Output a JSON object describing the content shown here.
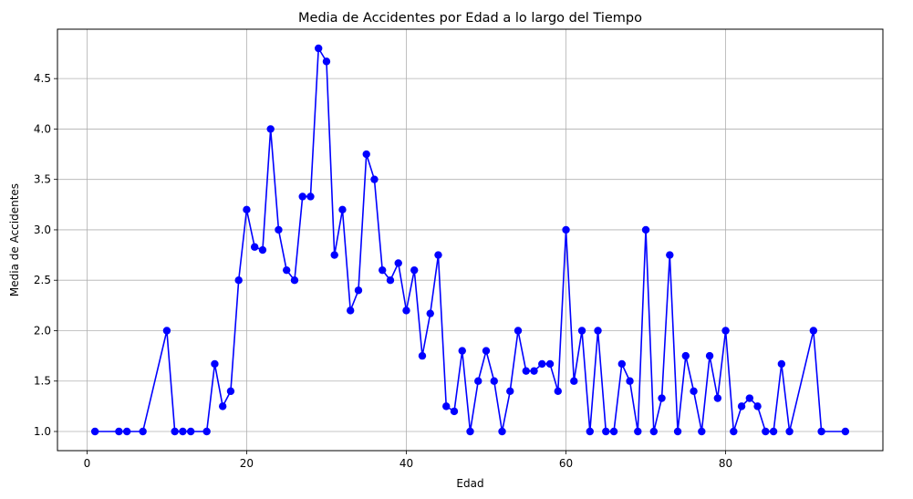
{
  "chart_data": {
    "type": "line",
    "title": "Media de Accidentes por Edad a lo largo del Tiempo",
    "xlabel": "Edad",
    "ylabel": "Media de Accidentes",
    "xlim": [
      -3.7,
      99.7
    ],
    "ylim": [
      0.81,
      4.99
    ],
    "xticks": [
      0,
      20,
      40,
      60,
      80
    ],
    "yticks": [
      1.0,
      1.5,
      2.0,
      2.5,
      3.0,
      3.5,
      4.0,
      4.5
    ],
    "ytick_labels": [
      "1.0",
      "1.5",
      "2.0",
      "2.5",
      "3.0",
      "3.5",
      "4.0",
      "4.5"
    ],
    "grid": true,
    "series": [
      {
        "color": "#0000ff",
        "marker": "circle",
        "x": [
          1,
          4,
          5,
          7,
          10,
          11,
          12,
          13,
          15,
          16,
          17,
          18,
          19,
          20,
          21,
          22,
          23,
          24,
          25,
          26,
          27,
          28,
          29,
          30,
          31,
          32,
          33,
          34,
          35,
          36,
          37,
          38,
          39,
          40,
          41,
          42,
          43,
          44,
          45,
          46,
          47,
          48,
          49,
          50,
          51,
          52,
          53,
          54,
          55,
          56,
          57,
          58,
          59,
          60,
          61,
          62,
          63,
          64,
          65,
          66,
          67,
          68,
          69,
          70,
          71,
          72,
          73,
          74,
          75,
          76,
          77,
          78,
          79,
          80,
          81,
          82,
          83,
          84,
          85,
          86,
          87,
          88,
          91,
          92,
          95
        ],
        "y": [
          1.0,
          1.0,
          1.0,
          1.0,
          2.0,
          1.0,
          1.0,
          1.0,
          1.0,
          1.67,
          1.25,
          1.4,
          2.5,
          3.2,
          2.83,
          2.8,
          4.0,
          3.0,
          2.6,
          2.5,
          3.33,
          3.33,
          4.8,
          4.67,
          2.75,
          3.2,
          2.2,
          2.4,
          3.75,
          3.5,
          2.6,
          2.5,
          2.67,
          2.2,
          2.6,
          1.75,
          2.17,
          2.75,
          1.25,
          1.2,
          1.8,
          1.0,
          1.5,
          1.8,
          1.5,
          1.0,
          1.4,
          2.0,
          1.6,
          1.6,
          1.67,
          1.67,
          1.4,
          3.0,
          1.5,
          2.0,
          1.0,
          2.0,
          1.0,
          1.0,
          1.67,
          1.5,
          1.0,
          3.0,
          1.0,
          1.33,
          2.75,
          1.0,
          1.75,
          1.4,
          1.0,
          1.75,
          1.33,
          2.0,
          1.0,
          1.25,
          1.33,
          1.25,
          1.0,
          1.0,
          1.67,
          1.0,
          2.0,
          1.0,
          1.0
        ]
      }
    ]
  }
}
